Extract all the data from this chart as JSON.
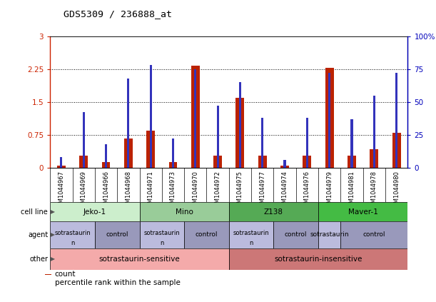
{
  "title": "GDS5309 / 236888_at",
  "samples": [
    "GSM1044967",
    "GSM1044969",
    "GSM1044966",
    "GSM1044968",
    "GSM1044971",
    "GSM1044973",
    "GSM1044970",
    "GSM1044972",
    "GSM1044975",
    "GSM1044977",
    "GSM1044974",
    "GSM1044976",
    "GSM1044979",
    "GSM1044981",
    "GSM1044978",
    "GSM1044980"
  ],
  "count_values": [
    0.05,
    0.28,
    0.12,
    0.67,
    0.85,
    0.12,
    2.32,
    0.27,
    1.6,
    0.27,
    0.04,
    0.27,
    2.28,
    0.27,
    0.42,
    0.8
  ],
  "percentile_values": [
    8,
    42,
    18,
    68,
    78,
    22,
    75,
    47,
    65,
    38,
    6,
    38,
    72,
    37,
    55,
    72
  ],
  "ylim_left": [
    0,
    3
  ],
  "ylim_right": [
    0,
    100
  ],
  "yticks_left": [
    0,
    0.75,
    1.5,
    2.25,
    3
  ],
  "yticks_right": [
    0,
    25,
    50,
    75,
    100
  ],
  "ytick_labels_left": [
    "0",
    "0.75",
    "1.5",
    "2.25",
    "3"
  ],
  "ytick_labels_right": [
    "0",
    "25",
    "50",
    "75",
    "100%"
  ],
  "left_axis_color": "#cc2200",
  "right_axis_color": "#0000bb",
  "bar_color_count": "#bb2200",
  "bar_color_pct": "#3333bb",
  "cell_line_data": [
    {
      "label": "Jeko-1",
      "start": 0,
      "end": 4,
      "color": "#cceecc"
    },
    {
      "label": "Mino",
      "start": 4,
      "end": 8,
      "color": "#99cc99"
    },
    {
      "label": "Z138",
      "start": 8,
      "end": 12,
      "color": "#55aa55"
    },
    {
      "label": "Maver-1",
      "start": 12,
      "end": 16,
      "color": "#44bb44"
    }
  ],
  "agent_data": [
    {
      "label": "sotrastaurin\nn",
      "start": 0,
      "end": 2,
      "color": "#bbbbdd"
    },
    {
      "label": "control",
      "start": 2,
      "end": 4,
      "color": "#9999bb"
    },
    {
      "label": "sotrastaurin\nn",
      "start": 4,
      "end": 6,
      "color": "#bbbbdd"
    },
    {
      "label": "control",
      "start": 6,
      "end": 8,
      "color": "#9999bb"
    },
    {
      "label": "sotrastaurin\nn",
      "start": 8,
      "end": 10,
      "color": "#bbbbdd"
    },
    {
      "label": "control",
      "start": 10,
      "end": 12,
      "color": "#9999bb"
    },
    {
      "label": "sotrastaurin",
      "start": 12,
      "end": 13,
      "color": "#bbbbdd"
    },
    {
      "label": "control",
      "start": 13,
      "end": 16,
      "color": "#9999bb"
    }
  ],
  "other_data": [
    {
      "label": "sotrastaurin-sensitive",
      "start": 0,
      "end": 8,
      "color": "#f4aaaa"
    },
    {
      "label": "sotrastaurin-insensitive",
      "start": 8,
      "end": 16,
      "color": "#cc7777"
    }
  ],
  "legend_items": [
    {
      "color": "#bb2200",
      "label": "count"
    },
    {
      "color": "#3333bb",
      "label": "percentile rank within the sample"
    }
  ],
  "xtick_bg": "#cccccc",
  "background_color": "#ffffff",
  "n_samples": 16
}
